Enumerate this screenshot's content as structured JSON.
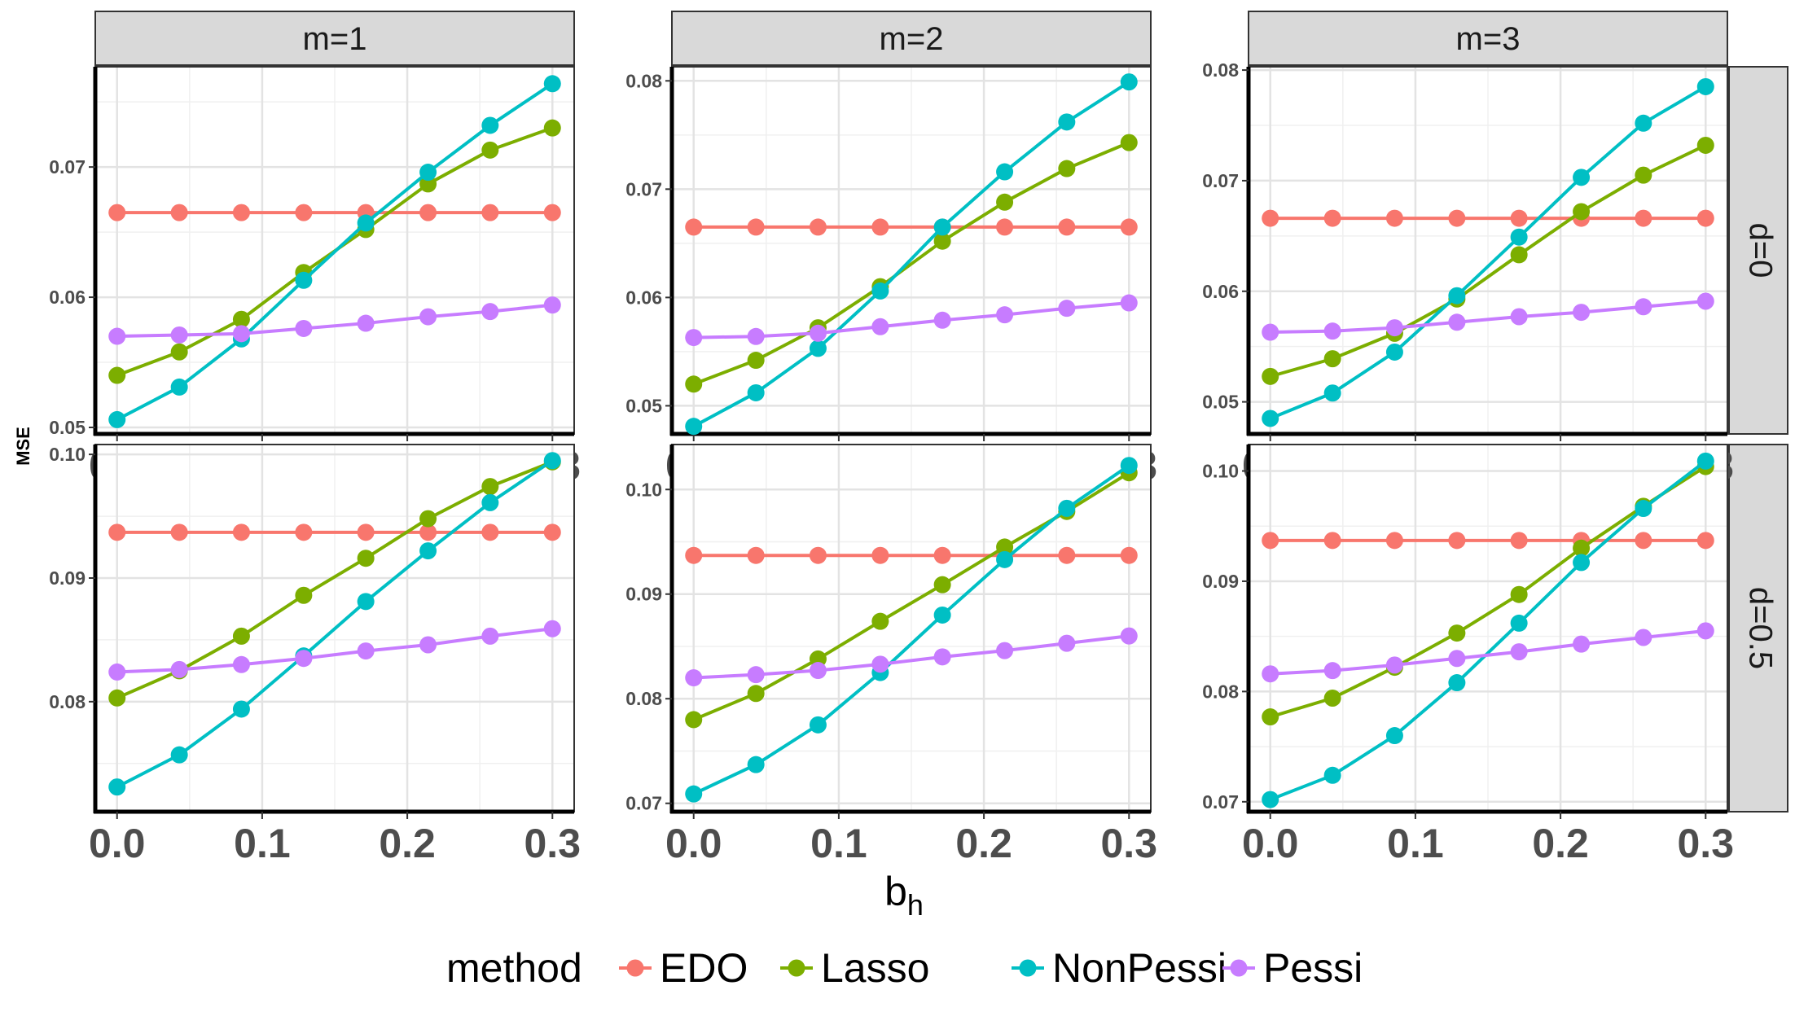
{
  "chart_data": {
    "type": "line",
    "facet_columns": [
      "m=1",
      "m=2",
      "m=3"
    ],
    "facet_rows": [
      "d=0",
      "d=0.5"
    ],
    "xlabel_main": "b",
    "xlabel_sub": "h",
    "ylabel": "MSE",
    "x": [
      0.0,
      0.0429,
      0.0857,
      0.1286,
      0.1714,
      0.2143,
      0.2571,
      0.3
    ],
    "x_ticks": [
      0.0,
      0.1,
      0.2,
      0.3
    ],
    "x_tick_labels": [
      "0.0",
      "0.1",
      "0.2",
      "0.3"
    ],
    "xlim": [
      -0.015,
      0.315
    ],
    "legend_title": "method",
    "legend_position": "bottom",
    "series_colors": {
      "EDO": "#F8766D",
      "Lasso": "#7CAE00",
      "NonPessi": "#00BFC4",
      "Pessi": "#C77CFF"
    },
    "panels": [
      {
        "row": "d=0",
        "col": "m=1",
        "ylim": [
          0.0495,
          0.0777
        ],
        "y_ticks": [
          0.05,
          0.06,
          0.07
        ],
        "y_tick_labels": [
          "0.05",
          "0.06",
          "0.07"
        ],
        "series": [
          {
            "name": "EDO",
            "values": [
              0.0665,
              0.0665,
              0.0665,
              0.0665,
              0.0665,
              0.0665,
              0.0665,
              0.0665
            ]
          },
          {
            "name": "Lasso",
            "values": [
              0.054,
              0.0558,
              0.0583,
              0.0619,
              0.0652,
              0.0687,
              0.0713,
              0.073
            ]
          },
          {
            "name": "NonPessi",
            "values": [
              0.0506,
              0.0531,
              0.0568,
              0.0613,
              0.0657,
              0.0696,
              0.0732,
              0.0764
            ]
          },
          {
            "name": "Pessi",
            "values": [
              0.057,
              0.0571,
              0.0572,
              0.0576,
              0.058,
              0.0585,
              0.0589,
              0.0594
            ]
          }
        ]
      },
      {
        "row": "d=0",
        "col": "m=2",
        "ylim": [
          0.0474,
          0.0813
        ],
        "y_ticks": [
          0.05,
          0.06,
          0.07,
          0.08
        ],
        "y_tick_labels": [
          "0.05",
          "0.06",
          "0.07",
          "0.08"
        ],
        "series": [
          {
            "name": "EDO",
            "values": [
              0.0665,
              0.0665,
              0.0665,
              0.0665,
              0.0665,
              0.0665,
              0.0665,
              0.0665
            ]
          },
          {
            "name": "Lasso",
            "values": [
              0.052,
              0.0542,
              0.0572,
              0.061,
              0.0652,
              0.0688,
              0.0719,
              0.0743
            ]
          },
          {
            "name": "NonPessi",
            "values": [
              0.0481,
              0.0512,
              0.0553,
              0.0606,
              0.0665,
              0.0716,
              0.0762,
              0.0799
            ]
          },
          {
            "name": "Pessi",
            "values": [
              0.0563,
              0.0564,
              0.0567,
              0.0573,
              0.0579,
              0.0584,
              0.059,
              0.0595
            ]
          }
        ]
      },
      {
        "row": "d=0",
        "col": "m=3",
        "ylim": [
          0.0471,
          0.0803
        ],
        "y_ticks": [
          0.05,
          0.06,
          0.07,
          0.08
        ],
        "y_tick_labels": [
          "0.05",
          "0.06",
          "0.07",
          "0.08"
        ],
        "series": [
          {
            "name": "EDO",
            "values": [
              0.0666,
              0.0666,
              0.0666,
              0.0666,
              0.0666,
              0.0666,
              0.0666,
              0.0666
            ]
          },
          {
            "name": "Lasso",
            "values": [
              0.0523,
              0.0539,
              0.0562,
              0.0593,
              0.0633,
              0.0672,
              0.0705,
              0.0732
            ]
          },
          {
            "name": "NonPessi",
            "values": [
              0.0485,
              0.0508,
              0.0545,
              0.0596,
              0.0649,
              0.0703,
              0.0752,
              0.0785
            ]
          },
          {
            "name": "Pessi",
            "values": [
              0.0563,
              0.0564,
              0.0567,
              0.0572,
              0.0577,
              0.0581,
              0.0586,
              0.0591
            ]
          }
        ]
      },
      {
        "row": "d=0.5",
        "col": "m=1",
        "ylim": [
          0.0711,
          0.1008
        ],
        "y_ticks": [
          0.08,
          0.09,
          0.1
        ],
        "y_tick_labels": [
          "0.08",
          "0.09",
          "0.10"
        ],
        "series": [
          {
            "name": "EDO",
            "values": [
              0.0937,
              0.0937,
              0.0937,
              0.0937,
              0.0937,
              0.0937,
              0.0937,
              0.0937
            ]
          },
          {
            "name": "Lasso",
            "values": [
              0.0803,
              0.0825,
              0.0853,
              0.0886,
              0.0916,
              0.0948,
              0.0974,
              0.0994
            ]
          },
          {
            "name": "NonPessi",
            "values": [
              0.0731,
              0.0757,
              0.0794,
              0.0837,
              0.0881,
              0.0922,
              0.0961,
              0.0995
            ]
          },
          {
            "name": "Pessi",
            "values": [
              0.0824,
              0.0826,
              0.083,
              0.0835,
              0.0841,
              0.0846,
              0.0853,
              0.0859
            ]
          }
        ]
      },
      {
        "row": "d=0.5",
        "col": "m=2",
        "ylim": [
          0.0692,
          0.1043
        ],
        "y_ticks": [
          0.07,
          0.08,
          0.09,
          0.1
        ],
        "y_tick_labels": [
          "0.07",
          "0.08",
          "0.09",
          "0.10"
        ],
        "series": [
          {
            "name": "EDO",
            "values": [
              0.0937,
              0.0937,
              0.0937,
              0.0937,
              0.0937,
              0.0937,
              0.0937,
              0.0937
            ]
          },
          {
            "name": "Lasso",
            "values": [
              0.078,
              0.0805,
              0.0838,
              0.0874,
              0.0909,
              0.0945,
              0.0979,
              0.1016
            ]
          },
          {
            "name": "NonPessi",
            "values": [
              0.0709,
              0.0737,
              0.0775,
              0.0825,
              0.088,
              0.0933,
              0.0982,
              0.1023
            ]
          },
          {
            "name": "Pessi",
            "values": [
              0.082,
              0.0823,
              0.0827,
              0.0833,
              0.084,
              0.0846,
              0.0853,
              0.086
            ]
          }
        ]
      },
      {
        "row": "d=0.5",
        "col": "m=3",
        "ylim": [
          0.0691,
          0.1024
        ],
        "y_ticks": [
          0.07,
          0.08,
          0.09,
          0.1
        ],
        "y_tick_labels": [
          "0.07",
          "0.08",
          "0.09",
          "0.10"
        ],
        "series": [
          {
            "name": "EDO",
            "values": [
              0.0937,
              0.0937,
              0.0937,
              0.0937,
              0.0937,
              0.0937,
              0.0937,
              0.0937
            ]
          },
          {
            "name": "Lasso",
            "values": [
              0.0777,
              0.0794,
              0.0822,
              0.0853,
              0.0888,
              0.093,
              0.0968,
              0.1004
            ]
          },
          {
            "name": "NonPessi",
            "values": [
              0.0702,
              0.0724,
              0.076,
              0.0808,
              0.0862,
              0.0917,
              0.0966,
              0.1009
            ]
          },
          {
            "name": "Pessi",
            "values": [
              0.0816,
              0.0819,
              0.0824,
              0.083,
              0.0836,
              0.0843,
              0.0849,
              0.0855
            ]
          }
        ]
      }
    ]
  }
}
